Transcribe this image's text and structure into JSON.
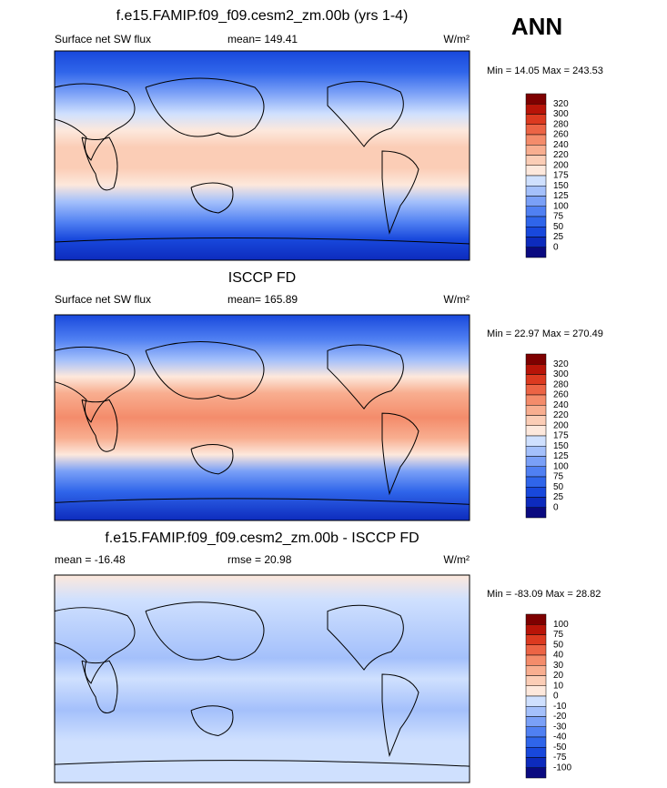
{
  "season": "ANN",
  "panels": [
    {
      "title": "f.e15.FAMIP.f09_f09.cesm2_zm.00b (yrs 1-4)",
      "left_label": "Surface net SW flux",
      "center_label": "mean= 149.41",
      "units": "W/m²",
      "min_max": "Min =  14.05 Max = 243.53",
      "colorbar": {
        "labels": [
          "320",
          "300",
          "280",
          "260",
          "240",
          "220",
          "200",
          "175",
          "150",
          "125",
          "100",
          "75",
          "50",
          "25",
          "0"
        ],
        "colors": [
          "#7e0000",
          "#b81408",
          "#dc3a20",
          "#ec6445",
          "#f48c6b",
          "#f8ae90",
          "#fbcdb6",
          "#fde8dc",
          "#cfe0fe",
          "#a4c0fb",
          "#7aa0f7",
          "#5080f2",
          "#2f65ea",
          "#1848dc",
          "#0d2bbd",
          "#0a0a80"
        ]
      }
    },
    {
      "title": "ISCCP FD",
      "left_label": "Surface net SW flux",
      "center_label": "mean= 165.89",
      "units": "W/m²",
      "min_max": "Min =  22.97 Max = 270.49",
      "colorbar": {
        "labels": [
          "320",
          "300",
          "280",
          "260",
          "240",
          "220",
          "200",
          "175",
          "150",
          "125",
          "100",
          "75",
          "50",
          "25",
          "0"
        ],
        "colors": [
          "#7e0000",
          "#b81408",
          "#dc3a20",
          "#ec6445",
          "#f48c6b",
          "#f8ae90",
          "#fbcdb6",
          "#fde8dc",
          "#cfe0fe",
          "#a4c0fb",
          "#7aa0f7",
          "#5080f2",
          "#2f65ea",
          "#1848dc",
          "#0d2bbd",
          "#0a0a80"
        ]
      }
    },
    {
      "title": "f.e15.FAMIP.f09_f09.cesm2_zm.00b - ISCCP FD",
      "left_label": "mean = -16.48",
      "center_label": "rmse =  20.98",
      "units": "W/m²",
      "min_max": "Min = -83.09 Max =  28.82",
      "colorbar": {
        "labels": [
          "100",
          "75",
          "50",
          "40",
          "30",
          "20",
          "10",
          "0",
          "-10",
          "-20",
          "-30",
          "-40",
          "-50",
          "-75",
          "-100"
        ],
        "colors": [
          "#7e0000",
          "#b81408",
          "#dc3a20",
          "#ec6445",
          "#f48c6b",
          "#f8ae90",
          "#fbcdb6",
          "#fde8dc",
          "#cfe0fe",
          "#a4c0fb",
          "#7aa0f7",
          "#5080f2",
          "#2f65ea",
          "#1848dc",
          "#0d2bbd",
          "#0a0a80"
        ]
      }
    }
  ]
}
